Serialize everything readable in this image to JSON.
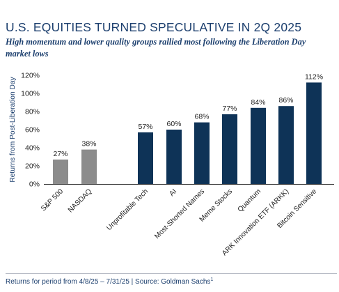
{
  "header": {
    "title": "U.S. EQUITIES TURNED SPECULATIVE IN 2Q 2025",
    "subtitle": "High momentum and lower quality groups rallied most following the Liberation Day market lows"
  },
  "footer": {
    "note": "Returns for period from 4/8/25 – 7/31/25 | Source: Goldman Sachs",
    "note_sup": "1"
  },
  "chart_data": {
    "type": "bar",
    "title": "U.S. EQUITIES TURNED SPECULATIVE IN 2Q 2025",
    "subtitle": "High momentum and lower quality groups rallied most following the Liberation Day market lows",
    "xlabel": "",
    "ylabel": "Returns from Post-Liberation Day",
    "ylim": [
      0,
      120
    ],
    "yticks": [
      0,
      20,
      40,
      60,
      80,
      100,
      120
    ],
    "ytick_labels": [
      "0%",
      "20%",
      "40%",
      "60%",
      "80%",
      "100%",
      "120%"
    ],
    "grid": false,
    "categories": [
      "S&P 500",
      "NASDAQ",
      "Unprofitable Tech",
      "AI",
      "Most-Shorted Names",
      "Meme Stocks",
      "Quantum",
      "ARK Innovation ETF (ARKK)",
      "Bitcoin Sensitive"
    ],
    "values": [
      27,
      38,
      57,
      60,
      68,
      77,
      84,
      86,
      112
    ],
    "data_labels": [
      "27%",
      "38%",
      "57%",
      "60%",
      "68%",
      "77%",
      "84%",
      "86%",
      "112%"
    ],
    "colors": {
      "benchmark": "#8c8c8c",
      "speculative": "#0e3357",
      "text": "#1c3f6e",
      "axis": "#333333"
    },
    "bar_colors": [
      "#8c8c8c",
      "#8c8c8c",
      "#0e3357",
      "#0e3357",
      "#0e3357",
      "#0e3357",
      "#0e3357",
      "#0e3357",
      "#0e3357"
    ]
  }
}
